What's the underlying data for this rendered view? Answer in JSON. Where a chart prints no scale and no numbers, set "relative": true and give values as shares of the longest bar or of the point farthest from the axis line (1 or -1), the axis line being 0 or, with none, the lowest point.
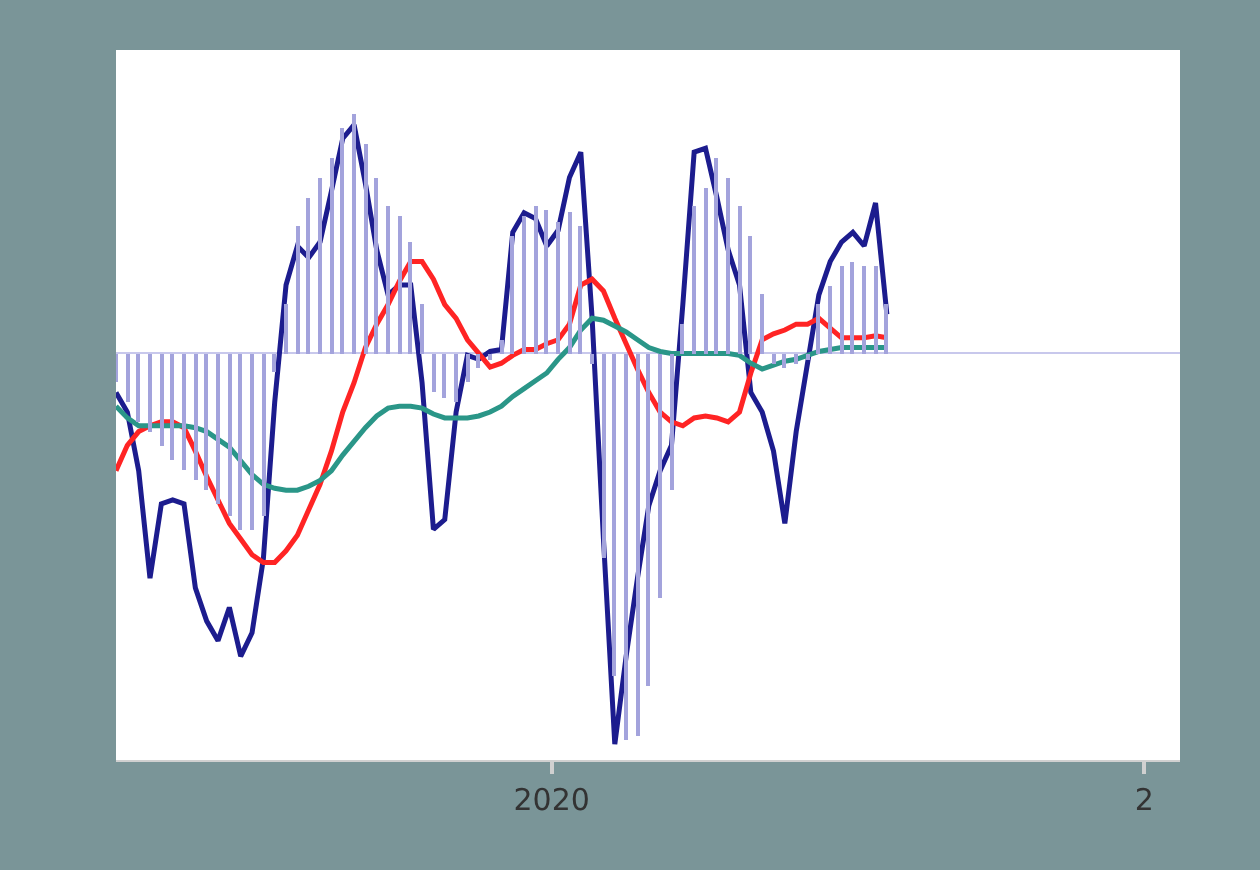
{
  "chart_data": {
    "type": "line",
    "relative": true,
    "legend": false,
    "x": [
      "2019-04-07",
      "2019-04-14",
      "2019-04-21",
      "2019-04-28",
      "2019-05-05",
      "2019-05-12",
      "2019-05-19",
      "2019-05-26",
      "2019-06-02",
      "2019-06-09",
      "2019-06-16",
      "2019-06-23",
      "2019-06-30",
      "2019-07-07",
      "2019-07-14",
      "2019-07-21",
      "2019-07-28",
      "2019-08-04",
      "2019-08-11",
      "2019-08-18",
      "2019-08-25",
      "2019-09-01",
      "2019-09-08",
      "2019-09-15",
      "2019-09-22",
      "2019-09-29",
      "2019-10-06",
      "2019-10-13",
      "2019-10-20",
      "2019-10-27",
      "2019-11-03",
      "2019-11-10",
      "2019-11-17",
      "2019-11-24",
      "2019-12-01",
      "2019-12-08",
      "2019-12-15",
      "2019-12-22",
      "2019-12-29",
      "2020-01-05",
      "2020-01-12",
      "2020-01-19",
      "2020-01-26",
      "2020-02-02",
      "2020-02-09",
      "2020-02-16",
      "2020-02-23",
      "2020-03-01",
      "2020-03-08",
      "2020-03-15",
      "2020-03-22",
      "2020-03-29",
      "2020-04-05",
      "2020-04-12",
      "2020-04-19",
      "2020-04-26",
      "2020-05-03",
      "2020-05-10",
      "2020-05-17",
      "2020-05-24",
      "2020-05-31",
      "2020-06-07",
      "2020-06-14",
      "2020-06-21",
      "2020-06-28",
      "2020-07-05",
      "2020-07-12",
      "2020-07-19",
      "2020-07-26"
    ],
    "xlim": [
      "2019-04-07",
      "2021-01-23"
    ],
    "xticks": [
      {
        "value": "2020-01-01",
        "label": "2020"
      },
      {
        "value": "2021-01-01",
        "label": "2"
      }
    ],
    "series": [
      {
        "type": "bar",
        "color": "#a3a3dc",
        "values": [
          -0.075,
          -0.125,
          -0.175,
          -0.2,
          -0.235,
          -0.275,
          -0.3,
          -0.325,
          -0.35,
          -0.385,
          -0.415,
          -0.45,
          -0.45,
          -0.415,
          -0.05,
          0.125,
          0.325,
          0.4,
          0.45,
          0.5,
          0.575,
          0.615,
          0.535,
          0.45,
          0.375,
          0.35,
          0.285,
          0.125,
          -0.1,
          -0.115,
          -0.125,
          -0.075,
          -0.035,
          -0.015,
          0.035,
          0.3,
          0.35,
          0.375,
          0.365,
          0.335,
          0.36,
          0.325,
          -0.025,
          -0.525,
          -0.825,
          -0.99,
          -0.98,
          -0.85,
          -0.625,
          -0.35,
          0.075,
          0.375,
          0.425,
          0.5,
          0.45,
          0.375,
          0.3,
          0.15,
          -0.025,
          -0.035,
          -0.025,
          -0.015,
          0.125,
          0.175,
          0.225,
          0.235,
          0.225,
          0.225,
          0.125
        ]
      },
      {
        "color": "#1c1c8e",
        "values": [
          -0.1,
          -0.15,
          -0.3,
          -0.575,
          -0.385,
          -0.375,
          -0.385,
          -0.6,
          -0.685,
          -0.735,
          -0.65,
          -0.775,
          -0.715,
          -0.525,
          -0.125,
          0.175,
          0.275,
          0.245,
          0.285,
          0.415,
          0.55,
          0.585,
          0.435,
          0.265,
          0.15,
          0.175,
          0.175,
          -0.075,
          -0.45,
          -0.425,
          -0.15,
          -0.005,
          -0.015,
          0.005,
          0.01,
          0.31,
          0.36,
          0.345,
          0.275,
          0.315,
          0.45,
          0.515,
          0.09,
          -0.475,
          -1,
          -0.775,
          -0.575,
          -0.39,
          -0.3,
          -0.235,
          0.125,
          0.515,
          0.525,
          0.4,
          0.265,
          0.175,
          -0.1,
          -0.15,
          -0.25,
          -0.435,
          -0.2,
          -0.025,
          0.15,
          0.235,
          0.285,
          0.31,
          0.275,
          0.385,
          0.1
        ]
      },
      {
        "color": "#ff2424",
        "values": [
          -0.3,
          -0.235,
          -0.2,
          -0.185,
          -0.175,
          -0.175,
          -0.19,
          -0.25,
          -0.315,
          -0.375,
          -0.435,
          -0.475,
          -0.515,
          -0.535,
          -0.535,
          -0.505,
          -0.465,
          -0.4,
          -0.335,
          -0.25,
          -0.15,
          -0.075,
          0.015,
          0.075,
          0.125,
          0.185,
          0.235,
          0.235,
          0.19,
          0.125,
          0.09,
          0.035,
          0,
          -0.035,
          -0.025,
          -0.005,
          0.01,
          0.01,
          0.025,
          0.035,
          0.075,
          0.175,
          0.19,
          0.16,
          0.09,
          0.025,
          -0.04,
          -0.1,
          -0.15,
          -0.175,
          -0.185,
          -0.165,
          -0.16,
          -0.165,
          -0.175,
          -0.15,
          -0.05,
          0.035,
          0.05,
          0.06,
          0.075,
          0.075,
          0.09,
          0.065,
          0.04,
          0.04,
          0.04,
          0.045,
          0.04
        ]
      },
      {
        "color": "#2a9688",
        "values": [
          -0.135,
          -0.165,
          -0.185,
          -0.185,
          -0.185,
          -0.185,
          -0.185,
          -0.19,
          -0.2,
          -0.22,
          -0.24,
          -0.275,
          -0.31,
          -0.335,
          -0.345,
          -0.35,
          -0.35,
          -0.34,
          -0.325,
          -0.3,
          -0.26,
          -0.225,
          -0.19,
          -0.16,
          -0.14,
          -0.135,
          -0.135,
          -0.14,
          -0.155,
          -0.165,
          -0.165,
          -0.165,
          -0.16,
          -0.15,
          -0.135,
          -0.11,
          -0.09,
          -0.07,
          -0.05,
          -0.015,
          0.015,
          0.06,
          0.09,
          0.085,
          0.07,
          0.055,
          0.035,
          0.015,
          0.005,
          0,
          0,
          0,
          0,
          0,
          0,
          -0.005,
          -0.025,
          -0.04,
          -0.03,
          -0.02,
          -0.015,
          -0.005,
          0.005,
          0.01,
          0.015,
          0.015,
          0.015,
          0.015,
          0.015
        ]
      }
    ]
  }
}
